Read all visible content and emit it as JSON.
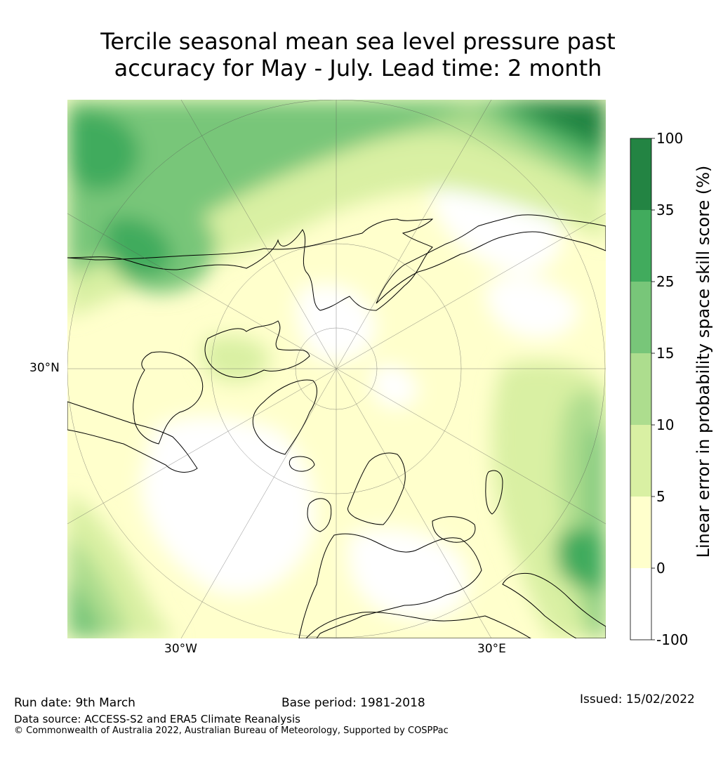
{
  "title": {
    "line1": "Tercile seasonal mean sea level pressure past",
    "line2": "accuracy for May - July. Lead time: 2 month"
  },
  "map": {
    "axis_labels": {
      "lat_left": "30°N",
      "lon_bottom_left": "30°W",
      "lon_bottom_right": "30°E"
    }
  },
  "colorbar": {
    "title": "Linear error in probability space skill score (%)",
    "ticks": [
      "100",
      "35",
      "25",
      "15",
      "10",
      "5",
      "0",
      "-100"
    ],
    "colors": [
      "#238443",
      "#41ab5d",
      "#78c679",
      "#addd8e",
      "#d9f0a3",
      "#ffffcc",
      "#ffffff"
    ]
  },
  "footer": {
    "run_date": "Run date: 9th March",
    "base_period": "Base period: 1981-2018",
    "issued": "Issued: 15/02/2022",
    "data_source": "Data source: ACCESS-S2 and ERA5 Climate Reanalysis",
    "copyright": "© Commonwealth of Australia 2022, Australian Bureau of Meteorology, Supported by COSPPac"
  }
}
